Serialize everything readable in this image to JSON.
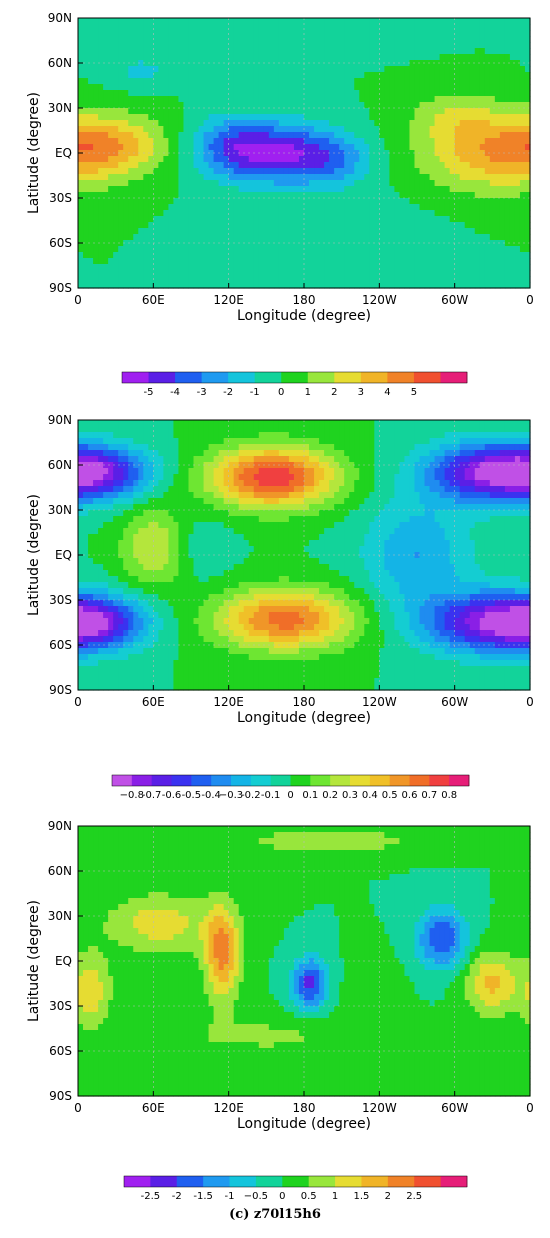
{
  "caption": "(c) z70l15h6",
  "chart_data": [
    {
      "type": "heatmap",
      "xlabel": "Longitude (degree)",
      "ylabel": "Latitude (degree)",
      "x_ticks": [
        "0",
        "60E",
        "120E",
        "180",
        "120W",
        "60W",
        "0"
      ],
      "y_ticks": [
        "90N",
        "60N",
        "30N",
        "EQ",
        "30S",
        "60S",
        "90S"
      ],
      "xlim": [
        0,
        360
      ],
      "ylim": [
        -90,
        90
      ],
      "colorbar": {
        "levels": [
          -5,
          -4,
          -3,
          -2,
          -1,
          0,
          1,
          2,
          3,
          4,
          5
        ],
        "labels": [
          "-5",
          "-4",
          "-3",
          "-2",
          "-1",
          "0",
          "1",
          "2",
          "3",
          "4",
          "5"
        ],
        "colors": [
          "#a020f0",
          "#5a1fe6",
          "#1f5ff0",
          "#1f9af0",
          "#14c4dc",
          "#12d39a",
          "#1fd31f",
          "#98e63c",
          "#e6dc32",
          "#f0b428",
          "#f08228",
          "#f05030",
          "#e61e78"
        ]
      },
      "blobs": [
        {
          "lon": 25,
          "lat": 5,
          "value": 3.3,
          "sx": 32,
          "sy": 14
        },
        {
          "lon": 330,
          "lat": 0,
          "value": 3.5,
          "sx": 40,
          "sy": 18
        },
        {
          "lon": 300,
          "lat": 25,
          "value": 1.5,
          "sx": 25,
          "sy": 12
        },
        {
          "lon": 160,
          "lat": 0,
          "value": -4.8,
          "sx": 32,
          "sy": 14
        },
        {
          "lon": 205,
          "lat": -5,
          "value": -2.0,
          "sx": 22,
          "sy": 12
        },
        {
          "lon": 120,
          "lat": 5,
          "value": -2.5,
          "sx": 22,
          "sy": 14
        },
        {
          "lon": 50,
          "lat": 55,
          "value": -1.2,
          "sx": 20,
          "sy": 8
        },
        {
          "lon": 200,
          "lat": -50,
          "value": -0.8,
          "sx": 50,
          "sy": 15
        },
        {
          "lon": 140,
          "lat": 75,
          "value": -0.5,
          "sx": 60,
          "sy": 8
        }
      ]
    },
    {
      "type": "heatmap",
      "xlabel": "Longitude (degree)",
      "ylabel": "Latitude (degree)",
      "x_ticks": [
        "0",
        "60E",
        "120E",
        "180",
        "120W",
        "60W",
        "0"
      ],
      "y_ticks": [
        "90N",
        "60N",
        "30N",
        "EQ",
        "30S",
        "60S",
        "90S"
      ],
      "xlim": [
        0,
        360
      ],
      "ylim": [
        -90,
        90
      ],
      "colorbar": {
        "levels": [
          -0.8,
          -0.7,
          -0.6,
          -0.5,
          -0.4,
          -0.3,
          -0.2,
          -0.1,
          0,
          0.1,
          0.2,
          0.3,
          0.4,
          0.5,
          0.6,
          0.7,
          0.8
        ],
        "labels": [
          "−0.8",
          "-0.7",
          "-0.6",
          "-0.5",
          "-0.4",
          "−0.3",
          "-0.2",
          "-0.1",
          "0",
          "0.1",
          "0.2",
          "0.3",
          "0.4",
          "0.5",
          "0.6",
          "0.7",
          "0.8"
        ],
        "colors": [
          "#c050e6",
          "#8a1fe6",
          "#5a1fe6",
          "#3a32f0",
          "#1f5ff0",
          "#1f8cf0",
          "#14b4e6",
          "#14cdd2",
          "#12d39a",
          "#1fd31f",
          "#6ee632",
          "#b4e63c",
          "#e6dc32",
          "#f0c028",
          "#f09628",
          "#f06e28",
          "#f04040",
          "#e61e78"
        ]
      },
      "blobs": [
        {
          "lon": 155,
          "lat": 52,
          "value": 0.78,
          "sx": 35,
          "sy": 14
        },
        {
          "lon": 165,
          "lat": -43,
          "value": 0.65,
          "sx": 38,
          "sy": 14
        },
        {
          "lon": 60,
          "lat": 5,
          "value": 0.3,
          "sx": 18,
          "sy": 18
        },
        {
          "lon": 15,
          "lat": 55,
          "value": -0.65,
          "sx": 30,
          "sy": 12
        },
        {
          "lon": 325,
          "lat": 55,
          "value": -0.72,
          "sx": 35,
          "sy": 14
        },
        {
          "lon": 15,
          "lat": -45,
          "value": -0.55,
          "sx": 28,
          "sy": 12
        },
        {
          "lon": 330,
          "lat": -45,
          "value": -0.75,
          "sx": 38,
          "sy": 14
        },
        {
          "lon": 270,
          "lat": 0,
          "value": -0.3,
          "sx": 30,
          "sy": 25
        },
        {
          "lon": 100,
          "lat": 5,
          "value": -0.1,
          "sx": 15,
          "sy": 15
        }
      ]
    },
    {
      "type": "heatmap",
      "xlabel": "Longitude (degree)",
      "ylabel": "Latitude (degree)",
      "x_ticks": [
        "0",
        "60E",
        "120E",
        "180",
        "120W",
        "60W",
        "0"
      ],
      "y_ticks": [
        "90N",
        "60N",
        "30N",
        "EQ",
        "30S",
        "60S",
        "90S"
      ],
      "xlim": [
        0,
        360
      ],
      "ylim": [
        -90,
        90
      ],
      "colorbar": {
        "levels": [
          -2.5,
          -2,
          -1.5,
          -1,
          -0.5,
          0,
          0.5,
          1,
          1.5,
          2,
          2.5
        ],
        "labels": [
          "-2.5",
          "-2",
          "-1.5",
          "-1",
          "−0.5",
          "0",
          "0.5",
          "1",
          "1.5",
          "2",
          "2.5"
        ],
        "colors": [
          "#a020f0",
          "#5a1fe6",
          "#1f5ff0",
          "#1f9af0",
          "#14c4dc",
          "#12d39a",
          "#1fd31f",
          "#98e63c",
          "#e6dc32",
          "#f0b428",
          "#f08228",
          "#f05030",
          "#e61e78"
        ]
      },
      "blobs": [
        {
          "lon": 65,
          "lat": 25,
          "value": 1.3,
          "sx": 30,
          "sy": 14
        },
        {
          "lon": 115,
          "lat": 5,
          "value": 2.2,
          "sx": 10,
          "sy": 22
        },
        {
          "lon": 10,
          "lat": -20,
          "value": 1.3,
          "sx": 12,
          "sy": 18
        },
        {
          "lon": 330,
          "lat": -15,
          "value": 1.6,
          "sx": 15,
          "sy": 15
        },
        {
          "lon": 185,
          "lat": -15,
          "value": -2.2,
          "sx": 10,
          "sy": 12
        },
        {
          "lon": 290,
          "lat": 15,
          "value": -2.0,
          "sx": 14,
          "sy": 14
        },
        {
          "lon": 150,
          "lat": -50,
          "value": 0.6,
          "sx": 60,
          "sy": 10
        },
        {
          "lon": 200,
          "lat": 80,
          "value": 0.9,
          "sx": 50,
          "sy": 6
        },
        {
          "lon": 235,
          "lat": -20,
          "value": 0.4,
          "sx": 15,
          "sy": 15
        }
      ]
    }
  ]
}
